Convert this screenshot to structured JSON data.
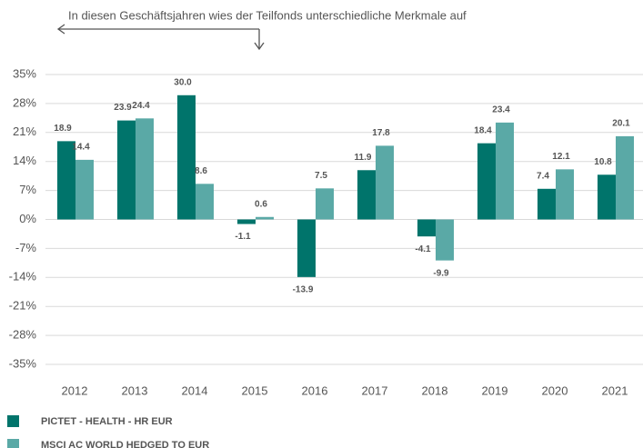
{
  "chart_data": {
    "type": "bar",
    "annotation": "In diesen Geschäftsjahren wies der Teilfonds unterschiedliche Merkmale auf",
    "categories": [
      "2012",
      "2013",
      "2014",
      "2015",
      "2016",
      "2017",
      "2018",
      "2019",
      "2020",
      "2021"
    ],
    "series": [
      {
        "name": "PICTET - HEALTH - HR EUR",
        "color": "#00746b",
        "values": [
          18.9,
          23.9,
          30.0,
          -1.1,
          -13.9,
          11.9,
          -4.1,
          18.4,
          7.4,
          10.8
        ],
        "value_labels": [
          "18.9",
          "23.9",
          "30.0",
          "-1.1",
          "-13.9",
          "11.9",
          "-4.1",
          "18.4",
          "7.4",
          "10.8"
        ]
      },
      {
        "name": "MSCI AC WORLD HEDGED TO EUR",
        "color": "#5aa9a6",
        "values": [
          14.4,
          24.4,
          8.6,
          0.6,
          7.5,
          17.8,
          -9.9,
          23.4,
          12.1,
          20.1
        ],
        "value_labels": [
          "14.4",
          "24.4",
          "8.6",
          "0.6",
          "7.5",
          "17.8",
          "-9.9",
          "23.4",
          "12.1",
          "20.1"
        ]
      }
    ],
    "ylim": [
      -35,
      35
    ],
    "yticks": [
      {
        "value": 35,
        "label": "35%"
      },
      {
        "value": 28,
        "label": "28%"
      },
      {
        "value": 21,
        "label": "21%"
      },
      {
        "value": 14,
        "label": "14%"
      },
      {
        "value": 7,
        "label": "7%"
      },
      {
        "value": 0,
        "label": "0%"
      },
      {
        "value": -7,
        "label": "-7%"
      },
      {
        "value": -14,
        "label": "-14%"
      },
      {
        "value": -21,
        "label": "-21%"
      },
      {
        "value": -28,
        "label": "-28%"
      },
      {
        "value": -35,
        "label": "-35%"
      }
    ],
    "grid": true,
    "legend": "bottom"
  }
}
